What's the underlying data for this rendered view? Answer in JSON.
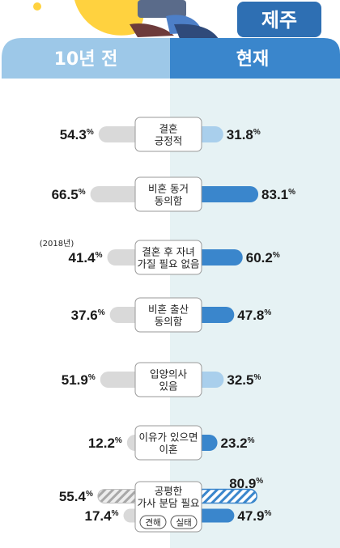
{
  "region": "제주",
  "columns": {
    "past": "10년 전",
    "now": "현재"
  },
  "colors": {
    "past_bar": "#d9d9d9",
    "now_bar": "#3a86cc",
    "now_bar_light": "#a9cfec",
    "header_past": "#9dc8e8",
    "header_now": "#3a86cc",
    "region_badge": "#2e6fb3",
    "panel_right": "#e6f2f4"
  },
  "chart_data": {
    "type": "bar",
    "unit": "%",
    "columns": [
      "10년 전",
      "현재"
    ],
    "categories": [
      {
        "label": [
          "결혼",
          "긍정적"
        ],
        "past": 54.3,
        "now": 31.8
      },
      {
        "label": [
          "비혼 동거",
          "동의함"
        ],
        "past": 66.5,
        "now": 83.1
      },
      {
        "label": [
          "결혼 후 자녀",
          "가질 필요 없음"
        ],
        "past": 41.4,
        "past_note": "(2018년)",
        "now": 60.2
      },
      {
        "label": [
          "비혼 출산",
          "동의함"
        ],
        "past": 37.6,
        "now": 47.8
      },
      {
        "label": [
          "입양의사",
          "있음"
        ],
        "past": 51.9,
        "now": 32.5
      },
      {
        "label": [
          "이유가 있으면",
          "이혼"
        ],
        "past": 12.2,
        "now": 23.2
      },
      {
        "label": [
          "공평한",
          "가사 분담 필요"
        ],
        "tags": [
          "견해",
          "실태"
        ],
        "past": {
          "견해": 55.4,
          "실태": 17.4
        },
        "now": {
          "견해": 80.9,
          "실태": 47.9
        }
      }
    ]
  }
}
